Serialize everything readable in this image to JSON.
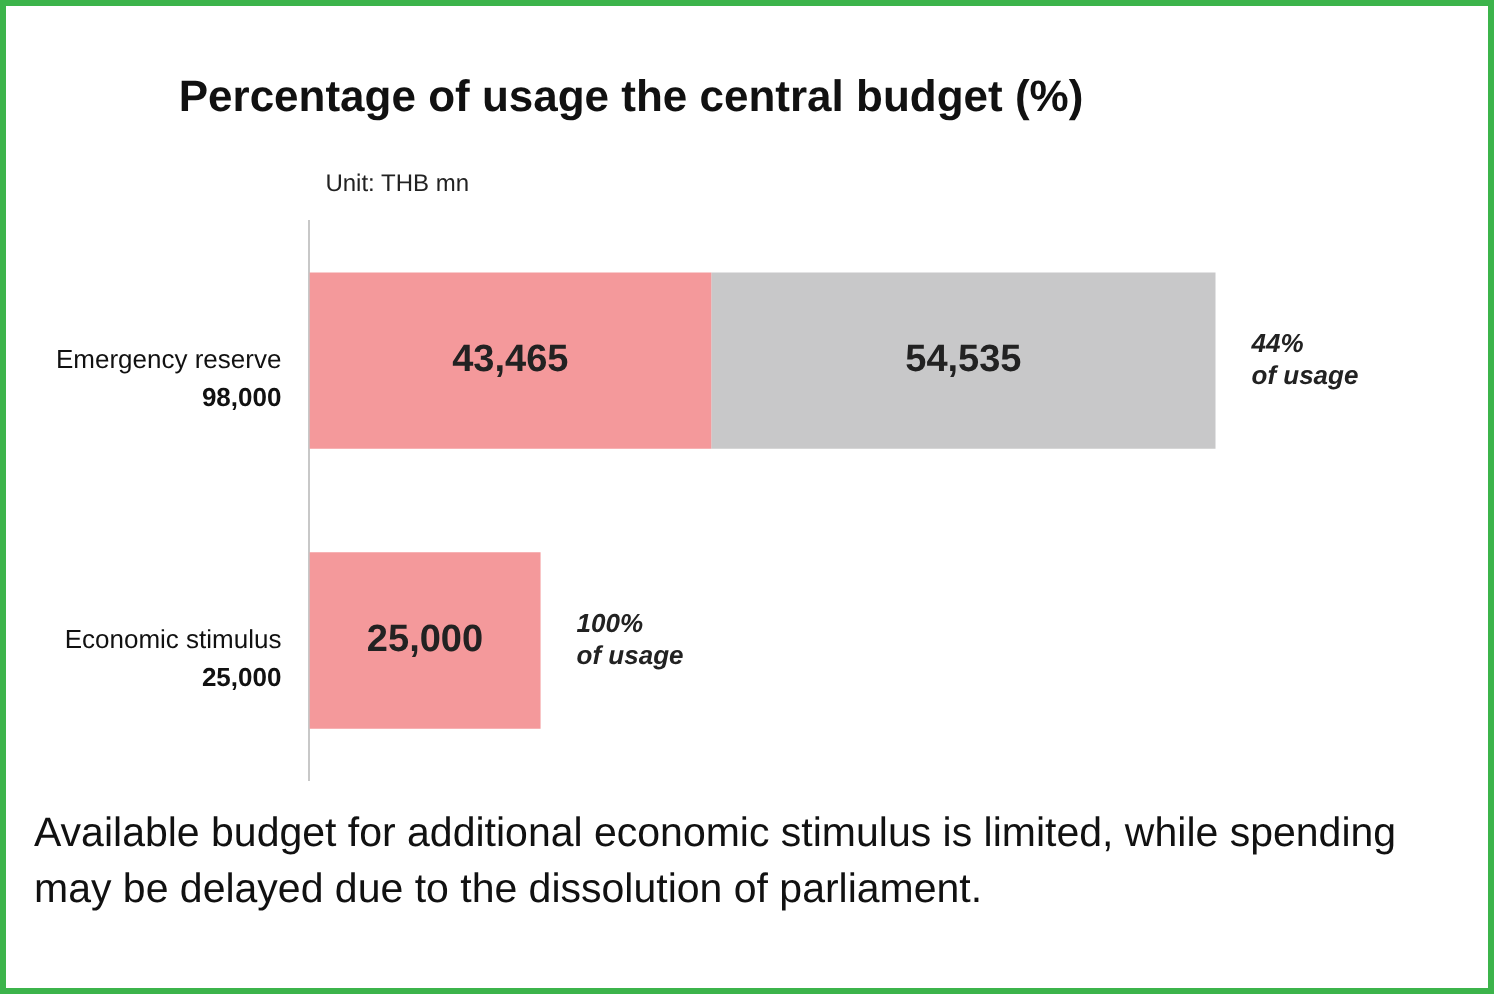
{
  "chart_data": {
    "type": "bar",
    "orientation": "horizontal",
    "stacked": true,
    "title": "Percentage of usage the central budget (%)",
    "categories": [
      "Emergency reserve",
      "Economic stimulus"
    ],
    "series": [
      {
        "color": "#f4999b",
        "values": [
          43465,
          25000
        ],
        "value_labels": [
          "43,465",
          "25,000"
        ]
      },
      {
        "color": "#c8c8c9",
        "values": [
          54535,
          null
        ],
        "value_labels": [
          "54,535",
          null
        ]
      }
    ],
    "totals": [
      "98,000",
      "25,000"
    ],
    "tick_labels": "y",
    "legend": false,
    "annotations": [
      "Unit: THB mn",
      {
        "text": "44%\nof usage",
        "x": 98000,
        "y": "Emergency reserve"
      },
      {
        "text": "100%\nof usage",
        "x": 25000,
        "y": "Economic stimulus"
      },
      "Available budget for additional economic stimulus is limited, while spending may be delayed due to the dissolution of parliament."
    ]
  }
}
